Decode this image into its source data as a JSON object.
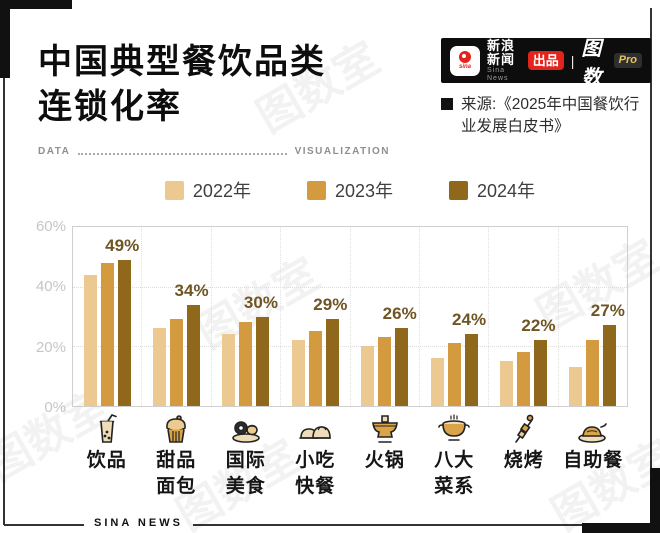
{
  "frame": {
    "footer_label": "SINA NEWS",
    "watermark_text": "图数室"
  },
  "title": {
    "line1": "中国典型餐饮品类",
    "line2": "连锁化率"
  },
  "subtitle_bar": {
    "left": "DATA",
    "right": "VISUALIZATION"
  },
  "header": {
    "sina_logo_text": "sina",
    "brand_name": "新浪新闻",
    "brand_sub": "Sina News",
    "produced_badge": "出品",
    "divider": "|",
    "product_name": "图数",
    "product_badge": "Pro"
  },
  "source": {
    "text": "来源:《2025年中国餐饮行业发展白皮书》"
  },
  "legend": {
    "items": [
      {
        "label": "2022年",
        "color": "#ECC990"
      },
      {
        "label": "2023年",
        "color": "#D39A3F"
      },
      {
        "label": "2024年",
        "color": "#8F681C"
      }
    ]
  },
  "chart_data": {
    "type": "bar",
    "title": "中国典型餐饮品类连锁化率",
    "categories": [
      "饮品",
      "甜品\n面包",
      "国际\n美食",
      "小吃\n快餐",
      "火锅",
      "八大\n菜系",
      "烧烤",
      "自助餐"
    ],
    "series": [
      {
        "name": "2022年",
        "color": "#ECC990",
        "values": [
          44,
          26,
          24,
          22,
          20,
          16,
          15,
          13
        ]
      },
      {
        "name": "2023年",
        "color": "#D39A3F",
        "values": [
          48,
          29,
          28,
          25,
          23,
          21,
          18,
          22
        ]
      },
      {
        "name": "2024年",
        "color": "#8F681C",
        "values": [
          49,
          34,
          30,
          29,
          26,
          24,
          22,
          27
        ]
      }
    ],
    "data_labels": [
      "49%",
      "34%",
      "30%",
      "29%",
      "26%",
      "24%",
      "22%",
      "27%"
    ],
    "yticks": [
      "0%",
      "20%",
      "40%",
      "60%"
    ],
    "ylim": [
      0,
      60
    ],
    "grid": true,
    "legend_position": "top",
    "icons": [
      "bubble-tea",
      "cupcake",
      "sushi",
      "baozi",
      "hotpot",
      "cuisine-pot",
      "skewer",
      "buffet"
    ]
  }
}
